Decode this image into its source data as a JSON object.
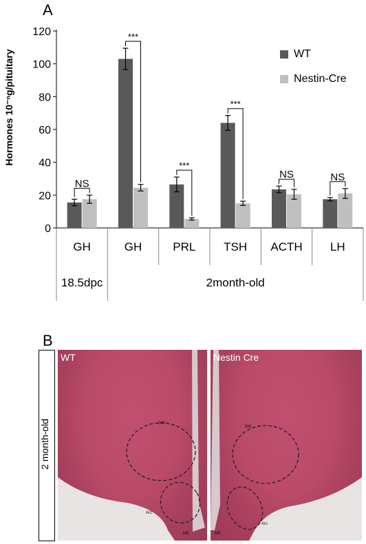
{
  "panel_a": {
    "letter": "A"
  },
  "panel_b": {
    "letter": "B",
    "side_label": "2 month-old",
    "left_image_label": "WT",
    "right_image_label": "Nestin Cre",
    "region_labels": {
      "dm": "DM",
      "arc_left": "Arc",
      "arc_right": "Arc",
      "me_left": "ME",
      "me_right": "ME"
    }
  },
  "colors": {
    "wt": "#595959",
    "nestin": "#bfbfbf"
  },
  "chart_data": {
    "type": "bar",
    "ylabel": "Hormones 10⁻ⁿg/pituitary",
    "ylim": [
      0,
      120
    ],
    "yticks": [
      0,
      20,
      40,
      60,
      80,
      100,
      120
    ],
    "categories": [
      "GH",
      "GH",
      "PRL",
      "TSH",
      "ACTH",
      "LH"
    ],
    "groups": [
      {
        "label": "18.5dpc",
        "span": [
          0,
          0
        ]
      },
      {
        "label": "2month-old",
        "span": [
          1,
          5
        ]
      }
    ],
    "series": [
      {
        "name": "WT",
        "values": [
          15.5,
          103,
          26.5,
          64,
          23.5,
          17.5
        ],
        "errors": [
          2,
          6.5,
          4.5,
          4.5,
          2,
          1
        ]
      },
      {
        "name": "Nestin-Cre",
        "values": [
          17.5,
          24.5,
          5.5,
          15,
          20.5,
          21
        ],
        "errors": [
          2.5,
          2,
          0.7,
          1.3,
          3,
          3
        ]
      }
    ],
    "significance": [
      "NS",
      "***",
      "***",
      "***",
      "NS",
      "NS"
    ],
    "legend_position": "top-right",
    "grid": false
  }
}
